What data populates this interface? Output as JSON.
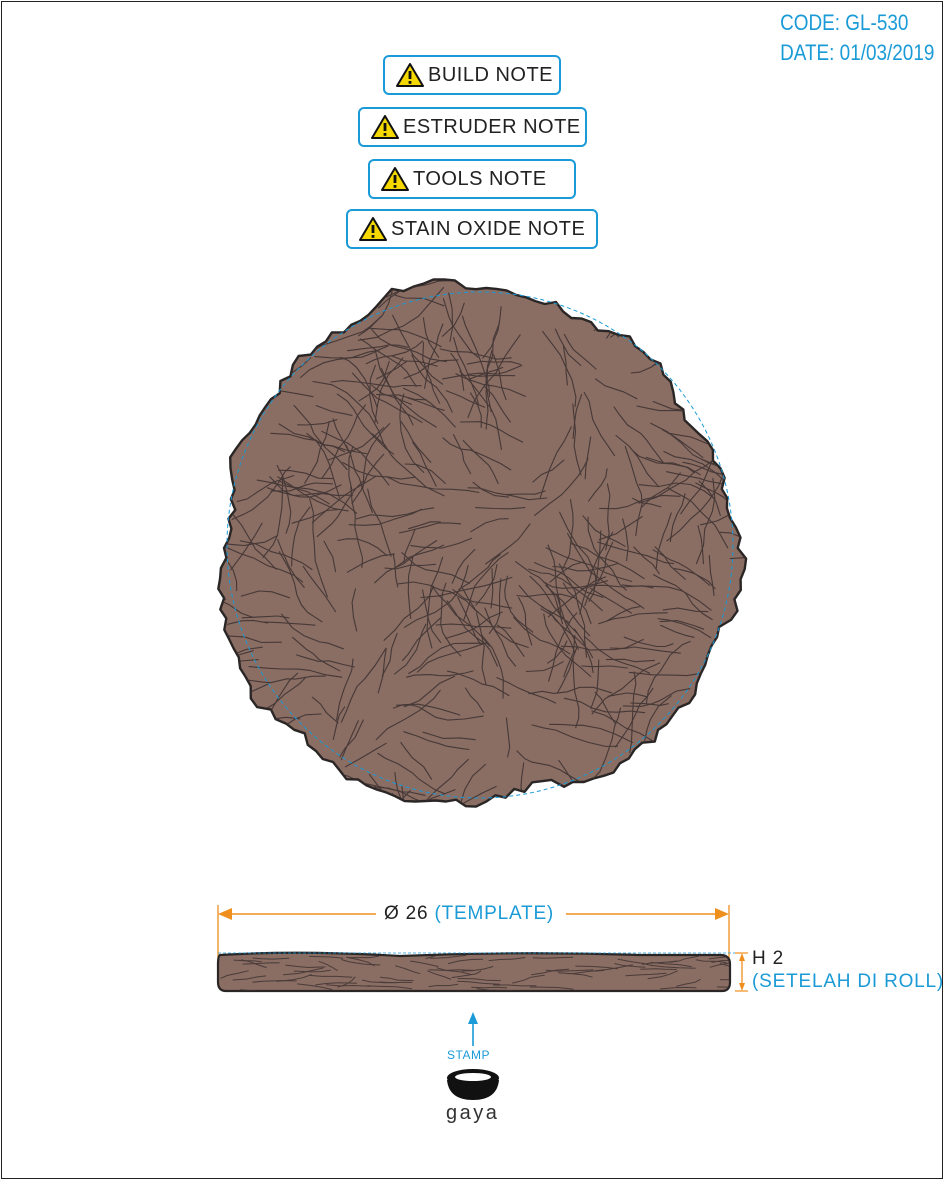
{
  "header": {
    "code": "CODE: GL-530",
    "date": "DATE: 01/03/2019"
  },
  "notes": [
    {
      "label": "BUILD NOTE",
      "icon": "warning-icon"
    },
    {
      "label": "ESTRUDER NOTE",
      "icon": "warning-icon"
    },
    {
      "label": "TOOLS NOTE",
      "icon": "warning-icon"
    },
    {
      "label": "STAIN OXIDE NOTE",
      "icon": "warning-icon"
    }
  ],
  "dimensions": {
    "diameter_value": "Ø 26",
    "diameter_note": "(TEMPLATE)",
    "height_value": "H 2",
    "height_note": "(SETELAH DI ROLL)"
  },
  "stamp": {
    "label": "STAMP",
    "brand": "gaya"
  },
  "colors": {
    "stone": "#8a6d63",
    "outline": "#2a2626",
    "accent_blue": "#1a9ad6",
    "dimension_orange": "#ef8f1e",
    "warning_yellow": "#f5d800"
  }
}
